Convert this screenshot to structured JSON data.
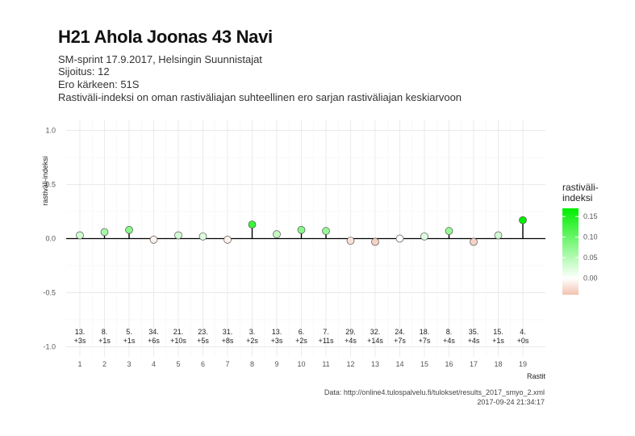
{
  "title": "H21 Ahola Joonas 43 Navi",
  "subtitle_lines": [
    "SM-sprint 17.9.2017, Helsingin Suunnistajat",
    "Sijoitus: 12",
    "Ero kärkeen: 51S",
    "Rastiväli-indeksi on oman rastiväliajan suhteellinen ero sarjan rastiväliajan keskiarvoon"
  ],
  "caption_lines": [
    "Data: http://online4.tulospalvelu.fi/tulokset/results_2017_smyo_2.xml",
    "2017-09-24 21:34:17"
  ],
  "legend": {
    "title": "rastiväli-\nindeksi",
    "ticks": [
      "0.15",
      "0.10",
      "0.05",
      "0.00"
    ],
    "tick_values": [
      0.15,
      0.1,
      0.05,
      0.0
    ],
    "range": [
      -0.04,
      0.17
    ],
    "colors": {
      "low": "#f3c3b1",
      "mid": "#ffffff",
      "high": "#00ee00"
    }
  },
  "chart_data": {
    "type": "scatter",
    "subtype": "lollipop",
    "xlabel": "Rastit",
    "ylabel": "rastiväli-indeksi",
    "ylim": [
      -1.0,
      1.0
    ],
    "yticks": [
      "1.0",
      "0.5",
      "0.0",
      "-0.5",
      "-1.0"
    ],
    "ytick_values": [
      1.0,
      0.5,
      0.0,
      -0.5,
      -1.0
    ],
    "x": [
      1,
      2,
      3,
      4,
      5,
      6,
      7,
      8,
      9,
      10,
      11,
      12,
      13,
      14,
      15,
      16,
      17,
      18,
      19
    ],
    "xticks": [
      "1",
      "2",
      "3",
      "4",
      "5",
      "6",
      "7",
      "8",
      "9",
      "10",
      "11",
      "12",
      "13",
      "14",
      "15",
      "16",
      "17",
      "18",
      "19"
    ],
    "values": [
      0.03,
      0.06,
      0.08,
      -0.01,
      0.03,
      0.02,
      -0.01,
      0.13,
      0.04,
      0.08,
      0.07,
      -0.02,
      -0.03,
      0.0,
      0.02,
      0.07,
      -0.03,
      0.03,
      0.17
    ],
    "rank_labels": [
      "13.",
      "8.",
      "5.",
      "34.",
      "21.",
      "23.",
      "31.",
      "3.",
      "13.",
      "6.",
      "7.",
      "29.",
      "32.",
      "24.",
      "18.",
      "8.",
      "35.",
      "15.",
      "4."
    ],
    "diff_labels": [
      "+3s",
      "+1s",
      "+1s",
      "+6s",
      "+10s",
      "+5s",
      "+8s",
      "+2s",
      "+3s",
      "+2s",
      "+11s",
      "+4s",
      "+14s",
      "+7s",
      "+7s",
      "+4s",
      "+4s",
      "+1s",
      "+0s"
    ],
    "grid": true,
    "legend_position": "right"
  }
}
